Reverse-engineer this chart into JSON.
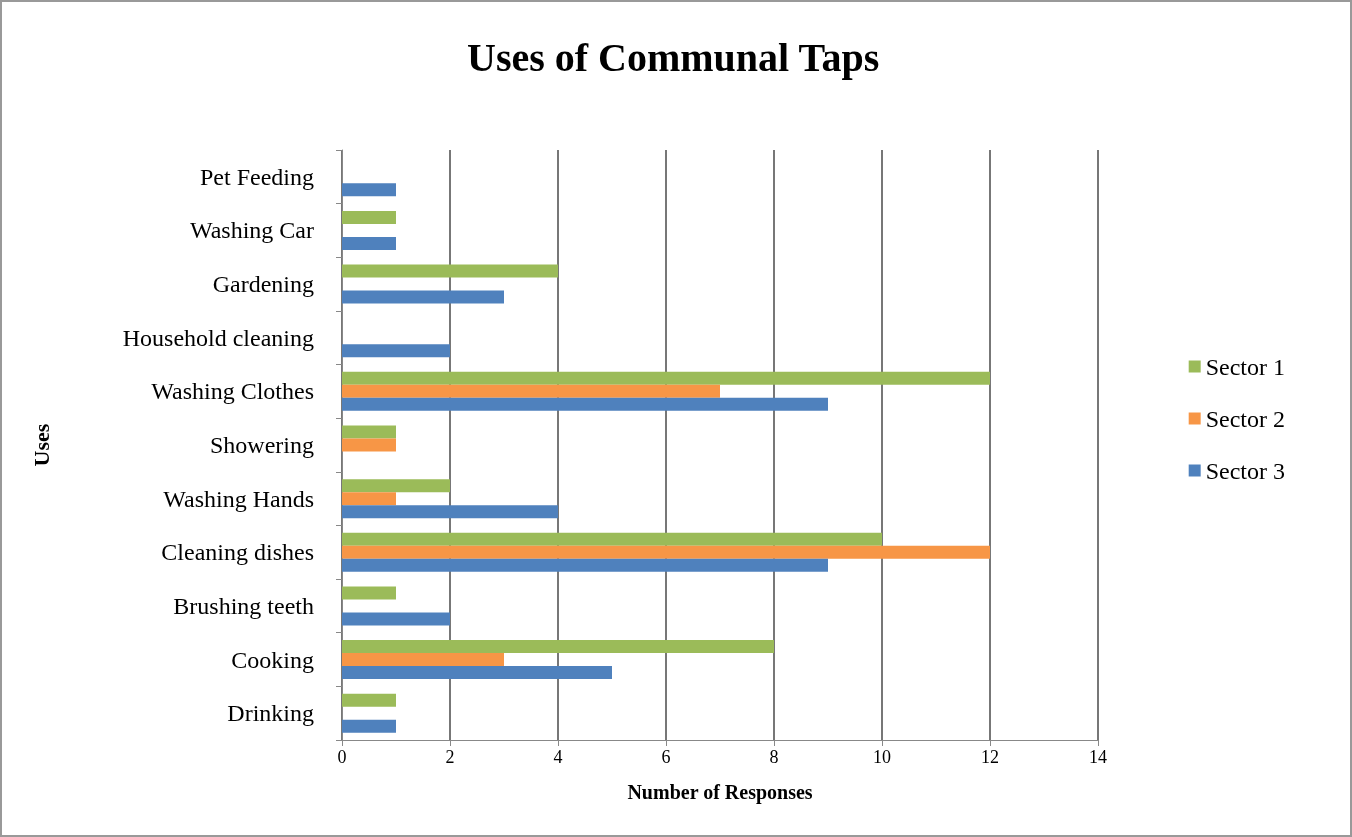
{
  "chart_data": {
    "type": "bar",
    "orientation": "horizontal",
    "title": "Uses of Communal Taps",
    "xlabel": "Number of Responses",
    "ylabel": "Uses",
    "categories": [
      "Pet Feeding",
      "Washing Car",
      "Gardening",
      "Household cleaning",
      "Washing Clothes",
      "Showering",
      "Washing Hands",
      "Cleaning dishes",
      "Brushing teeth",
      "Cooking",
      "Drinking"
    ],
    "series": [
      {
        "name": "Sector 1",
        "color": "#9bbb59",
        "values": [
          null,
          1,
          4,
          null,
          12,
          1,
          2,
          10,
          1,
          8,
          1
        ]
      },
      {
        "name": "Sector 2",
        "color": "#f79646",
        "values": [
          null,
          null,
          null,
          null,
          7,
          1,
          1,
          12,
          null,
          3,
          null
        ]
      },
      {
        "name": "Sector 3",
        "color": "#4f81bd",
        "values": [
          1,
          1,
          3,
          2,
          9,
          null,
          4,
          9,
          2,
          5,
          1
        ]
      }
    ],
    "xlim": [
      0,
      14
    ],
    "xticks": [
      0,
      2,
      4,
      6,
      8,
      10,
      12,
      14
    ],
    "grid": "x",
    "legend": "right"
  }
}
